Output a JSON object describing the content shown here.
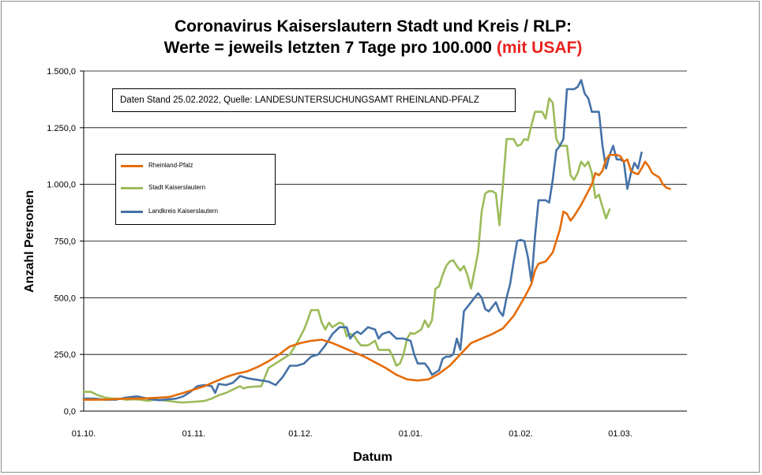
{
  "chart_data": {
    "type": "line",
    "title_line1": "Coronavirus Kaiserslautern Stadt und Kreis / RLP:",
    "title_line2": "Werte = jeweils letzten 7 Tage pro 100.000",
    "title_highlight": "(mit USAF)",
    "source_note": "Daten Stand 25.02.2022, Quelle: LANDESUNTERSUCHUNGSAMT RHEINLAND-PFALZ",
    "xlabel": "Datum",
    "ylabel": "Anzahl Personen",
    "ylim": [
      0,
      1500
    ],
    "y_ticks": [
      {
        "value": 0,
        "label": "0,0"
      },
      {
        "value": 250,
        "label": "250,0"
      },
      {
        "value": 500,
        "label": "500,0"
      },
      {
        "value": 750,
        "label": "750,0"
      },
      {
        "value": 1000,
        "label": "1.000,0"
      },
      {
        "value": 1250,
        "label": "1.250,0"
      },
      {
        "value": 1500,
        "label": "1.500,0"
      }
    ],
    "x_ticks": [
      {
        "label": "01.10.",
        "day": 0
      },
      {
        "label": "01.11.",
        "day": 31
      },
      {
        "label": "01.12.",
        "day": 61
      },
      {
        "label": "01.01.",
        "day": 92
      },
      {
        "label": "01.02.",
        "day": 123
      },
      {
        "label": "01.03.",
        "day": 151
      }
    ],
    "grid": "horizontal",
    "legend_position": "left",
    "series": [
      {
        "name": "Rheinland-Pfalz",
        "color": "#e46c0a",
        "points": [
          [
            0,
            50
          ],
          [
            4,
            50
          ],
          [
            8,
            52
          ],
          [
            12,
            55
          ],
          [
            16,
            55
          ],
          [
            20,
            58
          ],
          [
            24,
            62
          ],
          [
            28,
            80
          ],
          [
            31,
            95
          ],
          [
            34,
            110
          ],
          [
            37,
            130
          ],
          [
            40,
            150
          ],
          [
            43,
            165
          ],
          [
            46,
            175
          ],
          [
            49,
            195
          ],
          [
            52,
            220
          ],
          [
            55,
            250
          ],
          [
            58,
            285
          ],
          [
            61,
            300
          ],
          [
            64,
            310
          ],
          [
            67,
            315
          ],
          [
            70,
            300
          ],
          [
            73,
            280
          ],
          [
            76,
            260
          ],
          [
            79,
            240
          ],
          [
            82,
            215
          ],
          [
            85,
            190
          ],
          [
            88,
            160
          ],
          [
            91,
            140
          ],
          [
            94,
            135
          ],
          [
            97,
            140
          ],
          [
            100,
            165
          ],
          [
            103,
            200
          ],
          [
            106,
            250
          ],
          [
            109,
            300
          ],
          [
            112,
            320
          ],
          [
            115,
            340
          ],
          [
            118,
            365
          ],
          [
            121,
            420
          ],
          [
            124,
            500
          ],
          [
            126,
            560
          ],
          [
            127,
            620
          ],
          [
            128,
            650
          ],
          [
            130,
            660
          ],
          [
            132,
            700
          ],
          [
            134,
            800
          ],
          [
            135,
            880
          ],
          [
            136,
            870
          ],
          [
            137,
            840
          ],
          [
            138,
            860
          ],
          [
            140,
            910
          ],
          [
            141,
            940
          ],
          [
            143,
            1000
          ],
          [
            144,
            1050
          ],
          [
            145,
            1040
          ],
          [
            146,
            1060
          ],
          [
            147,
            1110
          ],
          [
            148,
            1130
          ],
          [
            150,
            1130
          ],
          [
            151,
            1125
          ],
          [
            152,
            1100
          ],
          [
            153,
            1110
          ],
          [
            154,
            1060
          ],
          [
            155,
            1050
          ],
          [
            156,
            1045
          ],
          [
            157,
            1070
          ],
          [
            158,
            1100
          ],
          [
            159,
            1080
          ],
          [
            160,
            1050
          ],
          [
            161,
            1040
          ],
          [
            162,
            1030
          ],
          [
            163,
            1000
          ],
          [
            164,
            985
          ],
          [
            165,
            980
          ]
        ]
      },
      {
        "name": "Stadt Kaiserslautern",
        "color": "#9bbb59",
        "points": [
          [
            0,
            85
          ],
          [
            2,
            85
          ],
          [
            4,
            70
          ],
          [
            6,
            60
          ],
          [
            8,
            55
          ],
          [
            10,
            55
          ],
          [
            12,
            50
          ],
          [
            14,
            52
          ],
          [
            16,
            50
          ],
          [
            18,
            45
          ],
          [
            20,
            50
          ],
          [
            22,
            48
          ],
          [
            24,
            45
          ],
          [
            26,
            40
          ],
          [
            28,
            38
          ],
          [
            30,
            40
          ],
          [
            32,
            42
          ],
          [
            34,
            45
          ],
          [
            36,
            55
          ],
          [
            38,
            70
          ],
          [
            40,
            80
          ],
          [
            42,
            95
          ],
          [
            44,
            110
          ],
          [
            45,
            100
          ],
          [
            46,
            105
          ],
          [
            48,
            108
          ],
          [
            50,
            110
          ],
          [
            52,
            190
          ],
          [
            54,
            210
          ],
          [
            56,
            230
          ],
          [
            58,
            250
          ],
          [
            60,
            300
          ],
          [
            62,
            360
          ],
          [
            63,
            400
          ],
          [
            64,
            445
          ],
          [
            66,
            445
          ],
          [
            67,
            390
          ],
          [
            68,
            360
          ],
          [
            69,
            390
          ],
          [
            70,
            370
          ],
          [
            72,
            390
          ],
          [
            73,
            385
          ],
          [
            74,
            330
          ],
          [
            75,
            340
          ],
          [
            76,
            335
          ],
          [
            77,
            310
          ],
          [
            78,
            290
          ],
          [
            80,
            290
          ],
          [
            81,
            300
          ],
          [
            82,
            310
          ],
          [
            83,
            270
          ],
          [
            85,
            270
          ],
          [
            86,
            270
          ],
          [
            87,
            240
          ],
          [
            88,
            200
          ],
          [
            89,
            210
          ],
          [
            90,
            250
          ],
          [
            91,
            320
          ],
          [
            92,
            345
          ],
          [
            93,
            340
          ],
          [
            95,
            360
          ],
          [
            96,
            400
          ],
          [
            97,
            370
          ],
          [
            98,
            400
          ],
          [
            99,
            540
          ],
          [
            100,
            550
          ],
          [
            101,
            600
          ],
          [
            102,
            640
          ],
          [
            103,
            660
          ],
          [
            104,
            665
          ],
          [
            105,
            640
          ],
          [
            106,
            620
          ],
          [
            107,
            640
          ],
          [
            108,
            600
          ],
          [
            109,
            540
          ],
          [
            110,
            620
          ],
          [
            111,
            700
          ],
          [
            112,
            880
          ],
          [
            113,
            960
          ],
          [
            114,
            970
          ],
          [
            115,
            970
          ],
          [
            116,
            960
          ],
          [
            117,
            820
          ],
          [
            118,
            1000
          ],
          [
            119,
            1200
          ],
          [
            120,
            1200
          ],
          [
            121,
            1200
          ],
          [
            122,
            1170
          ],
          [
            123,
            1175
          ],
          [
            124,
            1200
          ],
          [
            125,
            1195
          ],
          [
            126,
            1260
          ],
          [
            127,
            1320
          ],
          [
            128,
            1320
          ],
          [
            129,
            1320
          ],
          [
            130,
            1290
          ],
          [
            131,
            1380
          ],
          [
            132,
            1360
          ],
          [
            133,
            1200
          ],
          [
            134,
            1170
          ],
          [
            135,
            1170
          ],
          [
            136,
            1170
          ],
          [
            137,
            1040
          ],
          [
            138,
            1020
          ],
          [
            139,
            1050
          ],
          [
            140,
            1100
          ],
          [
            141,
            1080
          ],
          [
            142,
            1100
          ],
          [
            143,
            1050
          ],
          [
            144,
            940
          ],
          [
            145,
            955
          ],
          [
            146,
            900
          ],
          [
            147,
            850
          ],
          [
            148,
            890
          ]
        ]
      },
      {
        "name": "Landkreis Kaiserslautern",
        "color": "#4572a7",
        "points": [
          [
            0,
            55
          ],
          [
            3,
            55
          ],
          [
            6,
            50
          ],
          [
            9,
            50
          ],
          [
            12,
            60
          ],
          [
            15,
            65
          ],
          [
            18,
            55
          ],
          [
            21,
            48
          ],
          [
            24,
            52
          ],
          [
            26,
            55
          ],
          [
            28,
            65
          ],
          [
            30,
            85
          ],
          [
            32,
            110
          ],
          [
            34,
            115
          ],
          [
            36,
            110
          ],
          [
            37,
            80
          ],
          [
            38,
            120
          ],
          [
            40,
            115
          ],
          [
            42,
            125
          ],
          [
            44,
            155
          ],
          [
            46,
            145
          ],
          [
            48,
            140
          ],
          [
            50,
            135
          ],
          [
            52,
            130
          ],
          [
            54,
            115
          ],
          [
            56,
            150
          ],
          [
            58,
            200
          ],
          [
            60,
            200
          ],
          [
            62,
            210
          ],
          [
            64,
            240
          ],
          [
            66,
            250
          ],
          [
            68,
            290
          ],
          [
            70,
            340
          ],
          [
            72,
            370
          ],
          [
            74,
            370
          ],
          [
            75,
            320
          ],
          [
            76,
            340
          ],
          [
            77,
            350
          ],
          [
            78,
            340
          ],
          [
            80,
            370
          ],
          [
            82,
            360
          ],
          [
            83,
            320
          ],
          [
            84,
            340
          ],
          [
            86,
            350
          ],
          [
            88,
            320
          ],
          [
            90,
            320
          ],
          [
            92,
            310
          ],
          [
            93,
            250
          ],
          [
            94,
            210
          ],
          [
            96,
            210
          ],
          [
            97,
            190
          ],
          [
            98,
            160
          ],
          [
            99,
            170
          ],
          [
            100,
            180
          ],
          [
            101,
            230
          ],
          [
            102,
            240
          ],
          [
            103,
            240
          ],
          [
            104,
            250
          ],
          [
            105,
            320
          ],
          [
            106,
            270
          ],
          [
            107,
            440
          ],
          [
            108,
            460
          ],
          [
            110,
            500
          ],
          [
            111,
            520
          ],
          [
            112,
            500
          ],
          [
            113,
            450
          ],
          [
            114,
            440
          ],
          [
            115,
            460
          ],
          [
            116,
            480
          ],
          [
            117,
            440
          ],
          [
            118,
            420
          ],
          [
            119,
            500
          ],
          [
            120,
            560
          ],
          [
            121,
            660
          ],
          [
            122,
            750
          ],
          [
            123,
            755
          ],
          [
            124,
            750
          ],
          [
            125,
            680
          ],
          [
            126,
            570
          ],
          [
            127,
            770
          ],
          [
            128,
            930
          ],
          [
            129,
            930
          ],
          [
            130,
            930
          ],
          [
            131,
            920
          ],
          [
            132,
            1020
          ],
          [
            133,
            1150
          ],
          [
            134,
            1170
          ],
          [
            135,
            1200
          ],
          [
            136,
            1420
          ],
          [
            137,
            1420
          ],
          [
            138,
            1420
          ],
          [
            139,
            1430
          ],
          [
            140,
            1460
          ],
          [
            141,
            1400
          ],
          [
            142,
            1380
          ],
          [
            143,
            1320
          ],
          [
            144,
            1320
          ],
          [
            145,
            1320
          ],
          [
            146,
            1170
          ],
          [
            147,
            1070
          ],
          [
            148,
            1130
          ],
          [
            149,
            1170
          ],
          [
            150,
            1110
          ],
          [
            151,
            1110
          ],
          [
            152,
            1100
          ],
          [
            153,
            980
          ],
          [
            154,
            1050
          ],
          [
            155,
            1095
          ],
          [
            156,
            1070
          ],
          [
            157,
            1140
          ]
        ]
      }
    ]
  }
}
